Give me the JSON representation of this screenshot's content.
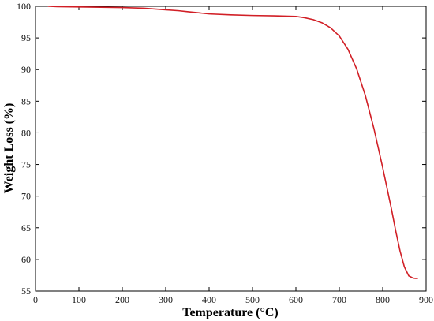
{
  "chart_data": {
    "type": "line",
    "title": "",
    "xlabel": "Temperature (°C)",
    "ylabel": "Weight Loss (%)",
    "xlim": [
      0,
      900
    ],
    "ylim": [
      55,
      100
    ],
    "x_ticks": [
      0,
      100,
      200,
      300,
      400,
      500,
      600,
      700,
      800,
      900
    ],
    "y_ticks": [
      55,
      60,
      65,
      70,
      75,
      80,
      85,
      90,
      95,
      100
    ],
    "x_tick_labels": [
      "0",
      "100",
      "200",
      "300",
      "400",
      "500",
      "600",
      "700",
      "800",
      "900"
    ],
    "y_tick_labels": [
      "55",
      "60",
      "65",
      "70",
      "75",
      "80",
      "85",
      "90",
      "95",
      "100"
    ],
    "grid": false,
    "legend": "none",
    "series": [
      {
        "color": "#d11f26",
        "x": [
          30,
          50,
          100,
          150,
          200,
          250,
          300,
          330,
          350,
          400,
          450,
          500,
          550,
          600,
          620,
          640,
          660,
          680,
          700,
          720,
          740,
          760,
          780,
          800,
          820,
          830,
          840,
          850,
          860,
          870,
          875,
          880
        ],
        "y": [
          100,
          99.95,
          99.9,
          99.85,
          99.8,
          99.7,
          99.45,
          99.3,
          99.15,
          98.8,
          98.65,
          98.55,
          98.5,
          98.4,
          98.2,
          97.9,
          97.4,
          96.6,
          95.3,
          93.2,
          90.1,
          85.9,
          80.6,
          74.5,
          68.0,
          64.5,
          61.3,
          58.8,
          57.4,
          57.05,
          57.0,
          57.0
        ]
      }
    ]
  }
}
